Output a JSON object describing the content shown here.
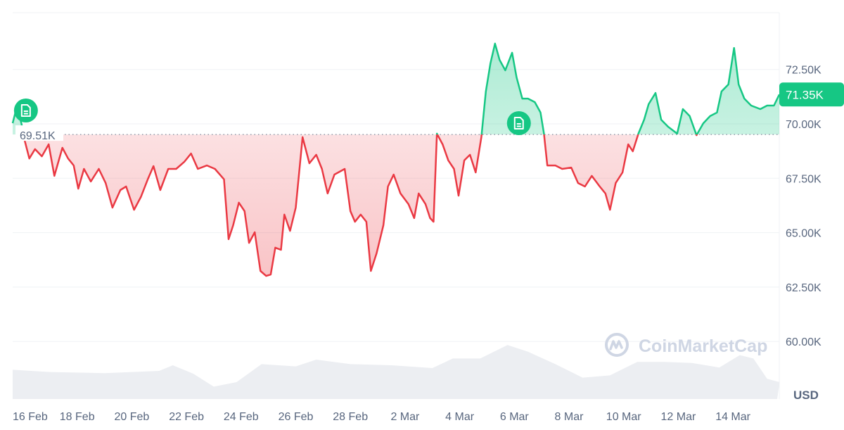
{
  "chart_data": {
    "type": "area",
    "currency_label": "USD",
    "watermark": "CoinMarketCap",
    "reference_price": 69510,
    "reference_label": "69.51K",
    "current_price": 71350,
    "current_label": "71.35K",
    "ylim": [
      58500,
      74300
    ],
    "y_ticks": [
      {
        "value": 60000,
        "label": "60.00K"
      },
      {
        "value": 62500,
        "label": "62.50K"
      },
      {
        "value": 65000,
        "label": "65.00K"
      },
      {
        "value": 67500,
        "label": "67.50K"
      },
      {
        "value": 70000,
        "label": "70.00K"
      },
      {
        "value": 72500,
        "label": "72.50K"
      }
    ],
    "x_ticks": [
      {
        "date": "16 Feb 00:00",
        "label": "16 Feb"
      },
      {
        "date": "18 Feb 00:00",
        "label": "18 Feb"
      },
      {
        "date": "20 Feb 00:00",
        "label": "20 Feb"
      },
      {
        "date": "22 Feb 00:00",
        "label": "22 Feb"
      },
      {
        "date": "24 Feb 00:00",
        "label": "24 Feb"
      },
      {
        "date": "26 Feb 00:00",
        "label": "26 Feb"
      },
      {
        "date": "28 Feb 00:00",
        "label": "28 Feb"
      },
      {
        "date": "2 Mar 00:00",
        "label": "2 Mar"
      },
      {
        "date": "4 Mar 00:00",
        "label": "4 Mar"
      },
      {
        "date": "6 Mar 00:00",
        "label": "6 Mar"
      },
      {
        "date": "8 Mar 00:00",
        "label": "8 Mar"
      },
      {
        "date": "10 Mar 00:00",
        "label": "10 Mar"
      },
      {
        "date": "12 Mar 00:00",
        "label": "12 Mar"
      },
      {
        "date": "14 Mar 00:00",
        "label": "14 Mar"
      }
    ],
    "xlim": [
      "15 Feb 15:00",
      "15 Mar 17:00"
    ],
    "colors": {
      "up": "#16c784",
      "down": "#ea3943",
      "grid": "#eff2f5",
      "axis_text": "#58667e",
      "volume": "#eceef2",
      "watermark": "#cfd6e4"
    },
    "news_markers": [
      {
        "date": "16 Feb 03:00",
        "icon": "document-icon"
      },
      {
        "date": "6 Mar 04:00",
        "icon": "document-icon"
      }
    ],
    "price_series": [
      [
        "15 Feb 15:00",
        70030
      ],
      [
        "15 Feb 19:00",
        70780
      ],
      [
        "15 Feb 23:00",
        70030
      ],
      [
        "16 Feb 02:00",
        69220
      ],
      [
        "16 Feb 06:00",
        68410
      ],
      [
        "16 Feb 11:00",
        68840
      ],
      [
        "16 Feb 17:00",
        68510
      ],
      [
        "16 Feb 23:00",
        69060
      ],
      [
        "17 Feb 04:00",
        67610
      ],
      [
        "17 Feb 11:00",
        68900
      ],
      [
        "17 Feb 16:00",
        68410
      ],
      [
        "17 Feb 21:00",
        68090
      ],
      [
        "18 Feb 01:00",
        67020
      ],
      [
        "18 Feb 06:00",
        67930
      ],
      [
        "18 Feb 12:00",
        67350
      ],
      [
        "18 Feb 19:00",
        67930
      ],
      [
        "19 Feb 01:00",
        67280
      ],
      [
        "19 Feb 07:00",
        66150
      ],
      [
        "19 Feb 14:00",
        66960
      ],
      [
        "19 Feb 19:00",
        67120
      ],
      [
        "20 Feb 02:00",
        66050
      ],
      [
        "20 Feb 08:00",
        66640
      ],
      [
        "20 Feb 14:00",
        67450
      ],
      [
        "20 Feb 19:00",
        68060
      ],
      [
        "21 Feb 01:00",
        66960
      ],
      [
        "21 Feb 08:00",
        67930
      ],
      [
        "21 Feb 15:00",
        67930
      ],
      [
        "21 Feb 22:00",
        68250
      ],
      [
        "22 Feb 04:00",
        68640
      ],
      [
        "22 Feb 10:00",
        67930
      ],
      [
        "22 Feb 18:00",
        68090
      ],
      [
        "23 Feb 01:00",
        67930
      ],
      [
        "23 Feb 09:00",
        67450
      ],
      [
        "23 Feb 13:00",
        64700
      ],
      [
        "23 Feb 17:00",
        65340
      ],
      [
        "23 Feb 22:00",
        66380
      ],
      [
        "24 Feb 03:00",
        65990
      ],
      [
        "24 Feb 07:00",
        64530
      ],
      [
        "24 Feb 12:00",
        65020
      ],
      [
        "24 Feb 17:00",
        63240
      ],
      [
        "24 Feb 22:00",
        63010
      ],
      [
        "25 Feb 02:00",
        63080
      ],
      [
        "25 Feb 06:00",
        64310
      ],
      [
        "25 Feb 11:00",
        64210
      ],
      [
        "25 Feb 14:00",
        65830
      ],
      [
        "25 Feb 19:00",
        65080
      ],
      [
        "26 Feb 00:00",
        66150
      ],
      [
        "26 Feb 06:00",
        69390
      ],
      [
        "26 Feb 12:00",
        68190
      ],
      [
        "26 Feb 18:00",
        68580
      ],
      [
        "26 Feb 23:00",
        67930
      ],
      [
        "27 Feb 04:00",
        66800
      ],
      [
        "27 Feb 10:00",
        67670
      ],
      [
        "27 Feb 19:00",
        67930
      ],
      [
        "28 Feb 00:00",
        65990
      ],
      [
        "28 Feb 04:00",
        65500
      ],
      [
        "28 Feb 09:00",
        65830
      ],
      [
        "28 Feb 14:00",
        65500
      ],
      [
        "28 Feb 18:00",
        63240
      ],
      [
        "28 Feb 23:00",
        64050
      ],
      [
        "1 Mar 05:00",
        65340
      ],
      [
        "1 Mar 09:00",
        67120
      ],
      [
        "1 Mar 14:00",
        67670
      ],
      [
        "1 Mar 20:00",
        66800
      ],
      [
        "2 Mar 03:00",
        66310
      ],
      [
        "2 Mar 08:00",
        65670
      ],
      [
        "2 Mar 12:00",
        66800
      ],
      [
        "2 Mar 18:00",
        66310
      ],
      [
        "2 Mar 22:00",
        65670
      ],
      [
        "3 Mar 01:00",
        65500
      ],
      [
        "3 Mar 04:00",
        69550
      ],
      [
        "3 Mar 09:00",
        69060
      ],
      [
        "3 Mar 14:00",
        68320
      ],
      [
        "3 Mar 19:00",
        67930
      ],
      [
        "3 Mar 23:00",
        66700
      ],
      [
        "4 Mar 04:00",
        68320
      ],
      [
        "4 Mar 09:00",
        68580
      ],
      [
        "4 Mar 14:00",
        67770
      ],
      [
        "4 Mar 19:00",
        69390
      ],
      [
        "4 Mar 23:00",
        71490
      ],
      [
        "5 Mar 03:00",
        72780
      ],
      [
        "5 Mar 07:00",
        73690
      ],
      [
        "5 Mar 11:00",
        72940
      ],
      [
        "5 Mar 16:00",
        72460
      ],
      [
        "5 Mar 22:00",
        73270
      ],
      [
        "6 Mar 02:00",
        72130
      ],
      [
        "6 Mar 07:00",
        71160
      ],
      [
        "6 Mar 12:00",
        71160
      ],
      [
        "6 Mar 18:00",
        71000
      ],
      [
        "6 Mar 23:00",
        70520
      ],
      [
        "7 Mar 02:00",
        69550
      ],
      [
        "7 Mar 05:00",
        68090
      ],
      [
        "7 Mar 12:00",
        68090
      ],
      [
        "7 Mar 18:00",
        67930
      ],
      [
        "8 Mar 02:00",
        67990
      ],
      [
        "8 Mar 08:00",
        67280
      ],
      [
        "8 Mar 14:00",
        67120
      ],
      [
        "8 Mar 20:00",
        67610
      ],
      [
        "9 Mar 03:00",
        67120
      ],
      [
        "9 Mar 08:00",
        66800
      ],
      [
        "9 Mar 12:00",
        66050
      ],
      [
        "9 Mar 17:00",
        67280
      ],
      [
        "9 Mar 23:00",
        67770
      ],
      [
        "10 Mar 04:00",
        69060
      ],
      [
        "10 Mar 08:00",
        68740
      ],
      [
        "10 Mar 13:00",
        69550
      ],
      [
        "10 Mar 18:00",
        70190
      ],
      [
        "10 Mar 22:00",
        70910
      ],
      [
        "11 Mar 04:00",
        71420
      ],
      [
        "11 Mar 09:00",
        70190
      ],
      [
        "11 Mar 15:00",
        69870
      ],
      [
        "11 Mar 23:00",
        69550
      ],
      [
        "12 Mar 04:00",
        70680
      ],
      [
        "12 Mar 10:00",
        70360
      ],
      [
        "12 Mar 16:00",
        69480
      ],
      [
        "12 Mar 22:00",
        70030
      ],
      [
        "13 Mar 04:00",
        70360
      ],
      [
        "13 Mar 10:00",
        70520
      ],
      [
        "13 Mar 14:00",
        71490
      ],
      [
        "13 Mar 20:00",
        71810
      ],
      [
        "14 Mar 01:00",
        73490
      ],
      [
        "14 Mar 05:00",
        71810
      ],
      [
        "14 Mar 10:00",
        71160
      ],
      [
        "14 Mar 16:00",
        70840
      ],
      [
        "15 Mar 00:00",
        70680
      ],
      [
        "15 Mar 06:00",
        70840
      ],
      [
        "15 Mar 12:00",
        70840
      ],
      [
        "15 Mar 17:00",
        71350
      ]
    ],
    "volume_relative": [
      [
        "15 Feb 15:00",
        0.52
      ],
      [
        "17 Feb 00:00",
        0.48
      ],
      [
        "19 Feb 00:00",
        0.46
      ],
      [
        "21 Feb 00:00",
        0.5
      ],
      [
        "21 Feb 12:00",
        0.6
      ],
      [
        "22 Feb 06:00",
        0.45
      ],
      [
        "23 Feb 00:00",
        0.22
      ],
      [
        "23 Feb 20:00",
        0.3
      ],
      [
        "24 Feb 18:00",
        0.62
      ],
      [
        "26 Feb 00:00",
        0.58
      ],
      [
        "26 Feb 18:00",
        0.7
      ],
      [
        "28 Feb 00:00",
        0.62
      ],
      [
        "1 Mar 12:00",
        0.6
      ],
      [
        "3 Mar 00:00",
        0.55
      ],
      [
        "3 Mar 18:00",
        0.72
      ],
      [
        "4 Mar 18:00",
        0.72
      ],
      [
        "5 Mar 18:00",
        0.96
      ],
      [
        "6 Mar 12:00",
        0.84
      ],
      [
        "7 Mar 12:00",
        0.62
      ],
      [
        "8 Mar 12:00",
        0.38
      ],
      [
        "9 Mar 12:00",
        0.42
      ],
      [
        "10 Mar 12:00",
        0.66
      ],
      [
        "11 Mar 12:00",
        0.66
      ],
      [
        "12 Mar 12:00",
        0.64
      ],
      [
        "13 Mar 12:00",
        0.56
      ],
      [
        "14 Mar 06:00",
        0.78
      ],
      [
        "14 Mar 18:00",
        0.72
      ],
      [
        "15 Mar 06:00",
        0.36
      ],
      [
        "15 Mar 17:00",
        0.3
      ]
    ]
  }
}
